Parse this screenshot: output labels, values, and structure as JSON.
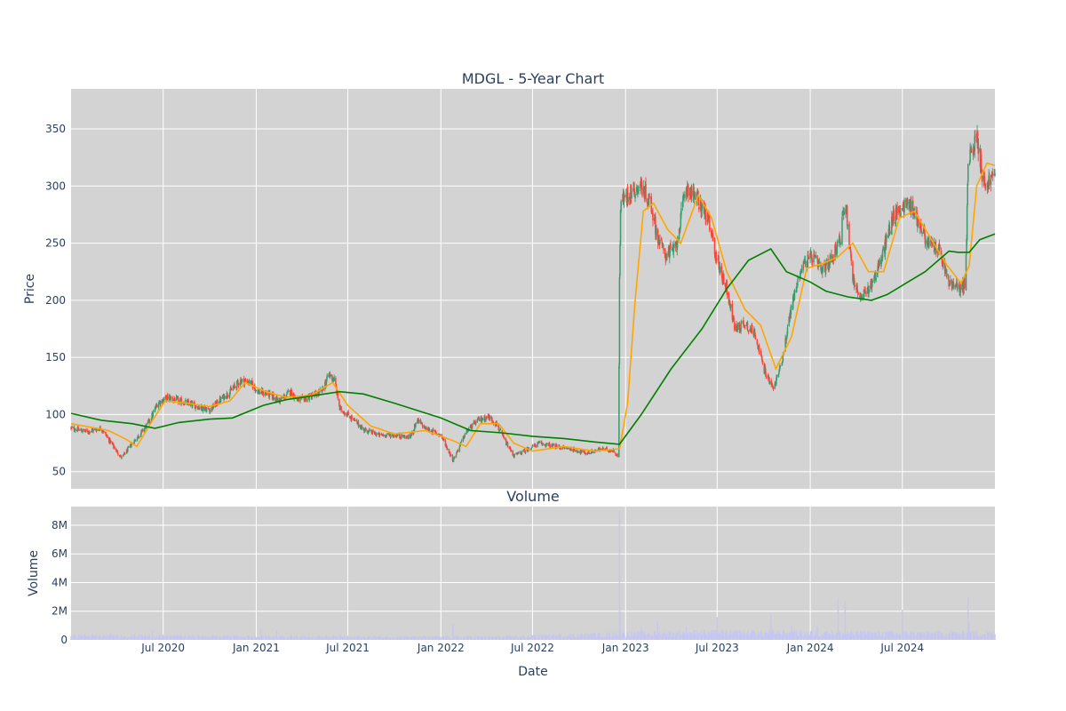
{
  "chart_data": [
    {
      "type": "candlestick",
      "title": "MDGL - 5-Year Chart",
      "ylabel": "Price",
      "ylim": [
        35,
        385
      ],
      "yticks": [
        50,
        100,
        150,
        200,
        250,
        300,
        350
      ],
      "xlim": [
        "2020-01-01",
        "2024-12-31"
      ],
      "grid": true,
      "legend": "none",
      "colors": {
        "increasing": "#3d9970",
        "decreasing": "#ff4136",
        "ma_short": "#ffa500",
        "ma_long": "#008000",
        "background": "#d3d3d3"
      },
      "close_trend": [
        [
          "2020-01-01",
          88
        ],
        [
          "2020-02-01",
          85
        ],
        [
          "2020-03-01",
          88
        ],
        [
          "2020-03-20",
          75
        ],
        [
          "2020-04-10",
          62
        ],
        [
          "2020-05-01",
          75
        ],
        [
          "2020-05-20",
          85
        ],
        [
          "2020-06-05",
          95
        ],
        [
          "2020-06-20",
          110
        ],
        [
          "2020-07-10",
          115
        ],
        [
          "2020-08-01",
          112
        ],
        [
          "2020-09-01",
          108
        ],
        [
          "2020-10-01",
          104
        ],
        [
          "2020-10-20",
          112
        ],
        [
          "2020-11-10",
          120
        ],
        [
          "2020-12-01",
          130
        ],
        [
          "2020-12-20",
          128
        ],
        [
          "2021-01-05",
          120
        ],
        [
          "2021-01-25",
          118
        ],
        [
          "2021-02-15",
          112
        ],
        [
          "2021-03-10",
          120
        ],
        [
          "2021-03-25",
          112
        ],
        [
          "2021-04-20",
          116
        ],
        [
          "2021-05-10",
          120
        ],
        [
          "2021-05-25",
          135
        ],
        [
          "2021-06-05",
          130
        ],
        [
          "2021-06-15",
          105
        ],
        [
          "2021-07-01",
          100
        ],
        [
          "2021-08-01",
          87
        ],
        [
          "2021-09-01",
          82
        ],
        [
          "2021-10-01",
          82
        ],
        [
          "2021-11-01",
          80
        ],
        [
          "2021-11-15",
          95
        ],
        [
          "2021-12-01",
          88
        ],
        [
          "2022-01-01",
          82
        ],
        [
          "2022-01-25",
          60
        ],
        [
          "2022-02-20",
          85
        ],
        [
          "2022-03-15",
          95
        ],
        [
          "2022-04-05",
          98
        ],
        [
          "2022-04-20",
          92
        ],
        [
          "2022-05-10",
          75
        ],
        [
          "2022-05-25",
          64
        ],
        [
          "2022-06-15",
          68
        ],
        [
          "2022-07-15",
          75
        ],
        [
          "2022-08-15",
          72
        ],
        [
          "2022-09-15",
          70
        ],
        [
          "2022-10-15",
          66
        ],
        [
          "2022-11-15",
          70
        ],
        [
          "2022-12-10",
          68
        ],
        [
          "2022-12-18",
          62
        ],
        [
          "2022-12-20",
          220
        ],
        [
          "2022-12-22",
          285
        ],
        [
          "2023-01-10",
          295
        ],
        [
          "2023-02-01",
          300
        ],
        [
          "2023-02-20",
          285
        ],
        [
          "2023-03-05",
          255
        ],
        [
          "2023-03-20",
          240
        ],
        [
          "2023-04-10",
          245
        ],
        [
          "2023-05-01",
          300
        ],
        [
          "2023-05-20",
          290
        ],
        [
          "2023-06-10",
          275
        ],
        [
          "2023-07-01",
          235
        ],
        [
          "2023-07-20",
          210
        ],
        [
          "2023-08-05",
          175
        ],
        [
          "2023-08-25",
          180
        ],
        [
          "2023-09-15",
          170
        ],
        [
          "2023-10-01",
          140
        ],
        [
          "2023-10-20",
          122
        ],
        [
          "2023-11-05",
          145
        ],
        [
          "2023-11-25",
          195
        ],
        [
          "2023-12-15",
          230
        ],
        [
          "2024-01-05",
          238
        ],
        [
          "2024-01-25",
          225
        ],
        [
          "2024-02-10",
          235
        ],
        [
          "2024-03-01",
          255
        ],
        [
          "2024-03-10",
          290
        ],
        [
          "2024-03-25",
          220
        ],
        [
          "2024-04-10",
          200
        ],
        [
          "2024-05-01",
          215
        ],
        [
          "2024-05-20",
          235
        ],
        [
          "2024-06-10",
          270
        ],
        [
          "2024-06-25",
          280
        ],
        [
          "2024-07-15",
          285
        ],
        [
          "2024-08-01",
          270
        ],
        [
          "2024-08-20",
          250
        ],
        [
          "2024-09-10",
          245
        ],
        [
          "2024-10-01",
          215
        ],
        [
          "2024-10-20",
          210
        ],
        [
          "2024-11-03",
          215
        ],
        [
          "2024-11-08",
          320
        ],
        [
          "2024-11-25",
          345
        ],
        [
          "2024-12-10",
          300
        ],
        [
          "2024-12-31",
          310
        ]
      ],
      "ma_short_trend": [
        [
          "2020-01-01",
          92
        ],
        [
          "2020-03-15",
          86
        ],
        [
          "2020-04-20",
          78
        ],
        [
          "2020-05-10",
          72
        ],
        [
          "2020-06-10",
          95
        ],
        [
          "2020-07-05",
          112
        ],
        [
          "2020-08-15",
          110
        ],
        [
          "2020-10-01",
          107
        ],
        [
          "2020-11-10",
          112
        ],
        [
          "2020-12-10",
          128
        ],
        [
          "2021-01-20",
          120
        ],
        [
          "2021-03-01",
          115
        ],
        [
          "2021-04-20",
          117
        ],
        [
          "2021-06-01",
          128
        ],
        [
          "2021-07-01",
          108
        ],
        [
          "2021-08-15",
          90
        ],
        [
          "2021-10-01",
          83
        ],
        [
          "2021-12-01",
          86
        ],
        [
          "2022-01-20",
          78
        ],
        [
          "2022-02-20",
          72
        ],
        [
          "2022-03-20",
          92
        ],
        [
          "2022-04-25",
          92
        ],
        [
          "2022-05-25",
          75
        ],
        [
          "2022-07-01",
          68
        ],
        [
          "2022-09-01",
          72
        ],
        [
          "2022-11-01",
          68
        ],
        [
          "2022-12-20",
          70
        ],
        [
          "2023-01-05",
          110
        ],
        [
          "2023-01-20",
          200
        ],
        [
          "2023-02-05",
          278
        ],
        [
          "2023-02-25",
          285
        ],
        [
          "2023-03-25",
          262
        ],
        [
          "2023-04-20",
          250
        ],
        [
          "2023-05-25",
          292
        ],
        [
          "2023-06-20",
          272
        ],
        [
          "2023-07-20",
          225
        ],
        [
          "2023-08-25",
          192
        ],
        [
          "2023-09-25",
          178
        ],
        [
          "2023-10-25",
          140
        ],
        [
          "2023-11-25",
          168
        ],
        [
          "2023-12-25",
          228
        ],
        [
          "2024-01-25",
          232
        ],
        [
          "2024-02-25",
          238
        ],
        [
          "2024-03-25",
          250
        ],
        [
          "2024-04-25",
          225
        ],
        [
          "2024-05-25",
          225
        ],
        [
          "2024-06-25",
          272
        ],
        [
          "2024-07-25",
          278
        ],
        [
          "2024-08-25",
          255
        ],
        [
          "2024-09-25",
          232
        ],
        [
          "2024-10-25",
          215
        ],
        [
          "2024-11-10",
          230
        ],
        [
          "2024-11-25",
          300
        ],
        [
          "2024-12-15",
          320
        ],
        [
          "2024-12-31",
          318
        ]
      ],
      "ma_long_trend": [
        [
          "2020-01-01",
          101
        ],
        [
          "2020-03-01",
          95
        ],
        [
          "2020-05-01",
          92
        ],
        [
          "2020-06-15",
          88
        ],
        [
          "2020-08-01",
          93
        ],
        [
          "2020-10-01",
          96
        ],
        [
          "2020-11-15",
          97
        ],
        [
          "2021-01-15",
          108
        ],
        [
          "2021-03-01",
          113
        ],
        [
          "2021-05-01",
          117
        ],
        [
          "2021-06-15",
          120
        ],
        [
          "2021-08-01",
          118
        ],
        [
          "2021-10-01",
          110
        ],
        [
          "2022-01-01",
          97
        ],
        [
          "2022-03-01",
          86
        ],
        [
          "2022-05-01",
          84
        ],
        [
          "2022-07-01",
          81
        ],
        [
          "2022-09-01",
          79
        ],
        [
          "2022-11-01",
          76
        ],
        [
          "2022-12-20",
          74
        ],
        [
          "2023-02-01",
          100
        ],
        [
          "2023-04-01",
          140
        ],
        [
          "2023-06-01",
          175
        ],
        [
          "2023-07-20",
          210
        ],
        [
          "2023-09-01",
          235
        ],
        [
          "2023-10-15",
          245
        ],
        [
          "2023-11-15",
          225
        ],
        [
          "2024-01-01",
          216
        ],
        [
          "2024-02-01",
          208
        ],
        [
          "2024-03-15",
          203
        ],
        [
          "2024-05-01",
          200
        ],
        [
          "2024-06-01",
          205
        ],
        [
          "2024-08-15",
          225
        ],
        [
          "2024-10-01",
          243
        ],
        [
          "2024-10-20",
          242
        ],
        [
          "2024-11-10",
          242
        ],
        [
          "2024-12-01",
          253
        ],
        [
          "2024-12-31",
          258
        ]
      ]
    },
    {
      "type": "bar",
      "title": "Volume",
      "xlabel": "Date",
      "ylabel": "Volume",
      "ylim": [
        0,
        9300000
      ],
      "ytick_labels": [
        "0",
        "2M",
        "4M",
        "6M",
        "8M"
      ],
      "yticks": [
        0,
        2000000,
        4000000,
        6000000,
        8000000
      ],
      "xtick_labels": [
        "Jul 2020",
        "Jan 2021",
        "Jul 2021",
        "Jan 2022",
        "Jul 2022",
        "Jan 2023",
        "Jul 2023",
        "Jan 2024",
        "Jul 2024"
      ],
      "xticks": [
        "2020-07-01",
        "2021-01-01",
        "2021-07-01",
        "2022-01-01",
        "2022-07-01",
        "2023-01-01",
        "2023-07-01",
        "2024-01-01",
        "2024-07-01"
      ],
      "colors": {
        "bar": "#c6c6f0",
        "background": "#d3d3d3"
      },
      "baseline_trend": [
        [
          "2020-01-01",
          250000
        ],
        [
          "2020-12-31",
          200000
        ],
        [
          "2021-12-31",
          180000
        ],
        [
          "2022-06-01",
          200000
        ],
        [
          "2022-12-01",
          350000
        ],
        [
          "2023-06-01",
          450000
        ],
        [
          "2024-06-01",
          400000
        ],
        [
          "2024-12-31",
          400000
        ]
      ],
      "spikes": [
        [
          "2020-03-20",
          500000
        ],
        [
          "2020-06-10",
          600000
        ],
        [
          "2021-01-10",
          700000
        ],
        [
          "2021-02-10",
          650000
        ],
        [
          "2021-06-15",
          400000
        ],
        [
          "2022-01-25",
          1100000
        ],
        [
          "2022-12-20",
          9000000
        ],
        [
          "2022-12-21",
          2000000
        ],
        [
          "2023-02-01",
          900000
        ],
        [
          "2023-03-05",
          1300000
        ],
        [
          "2023-05-01",
          900000
        ],
        [
          "2023-07-01",
          1600000
        ],
        [
          "2023-10-15",
          1800000
        ],
        [
          "2023-11-25",
          1000000
        ],
        [
          "2024-01-15",
          900000
        ],
        [
          "2024-02-25",
          2900000
        ],
        [
          "2024-03-10",
          2700000
        ],
        [
          "2024-07-01",
          2100000
        ],
        [
          "2024-11-08",
          3000000
        ],
        [
          "2024-11-10",
          1200000
        ]
      ]
    }
  ]
}
